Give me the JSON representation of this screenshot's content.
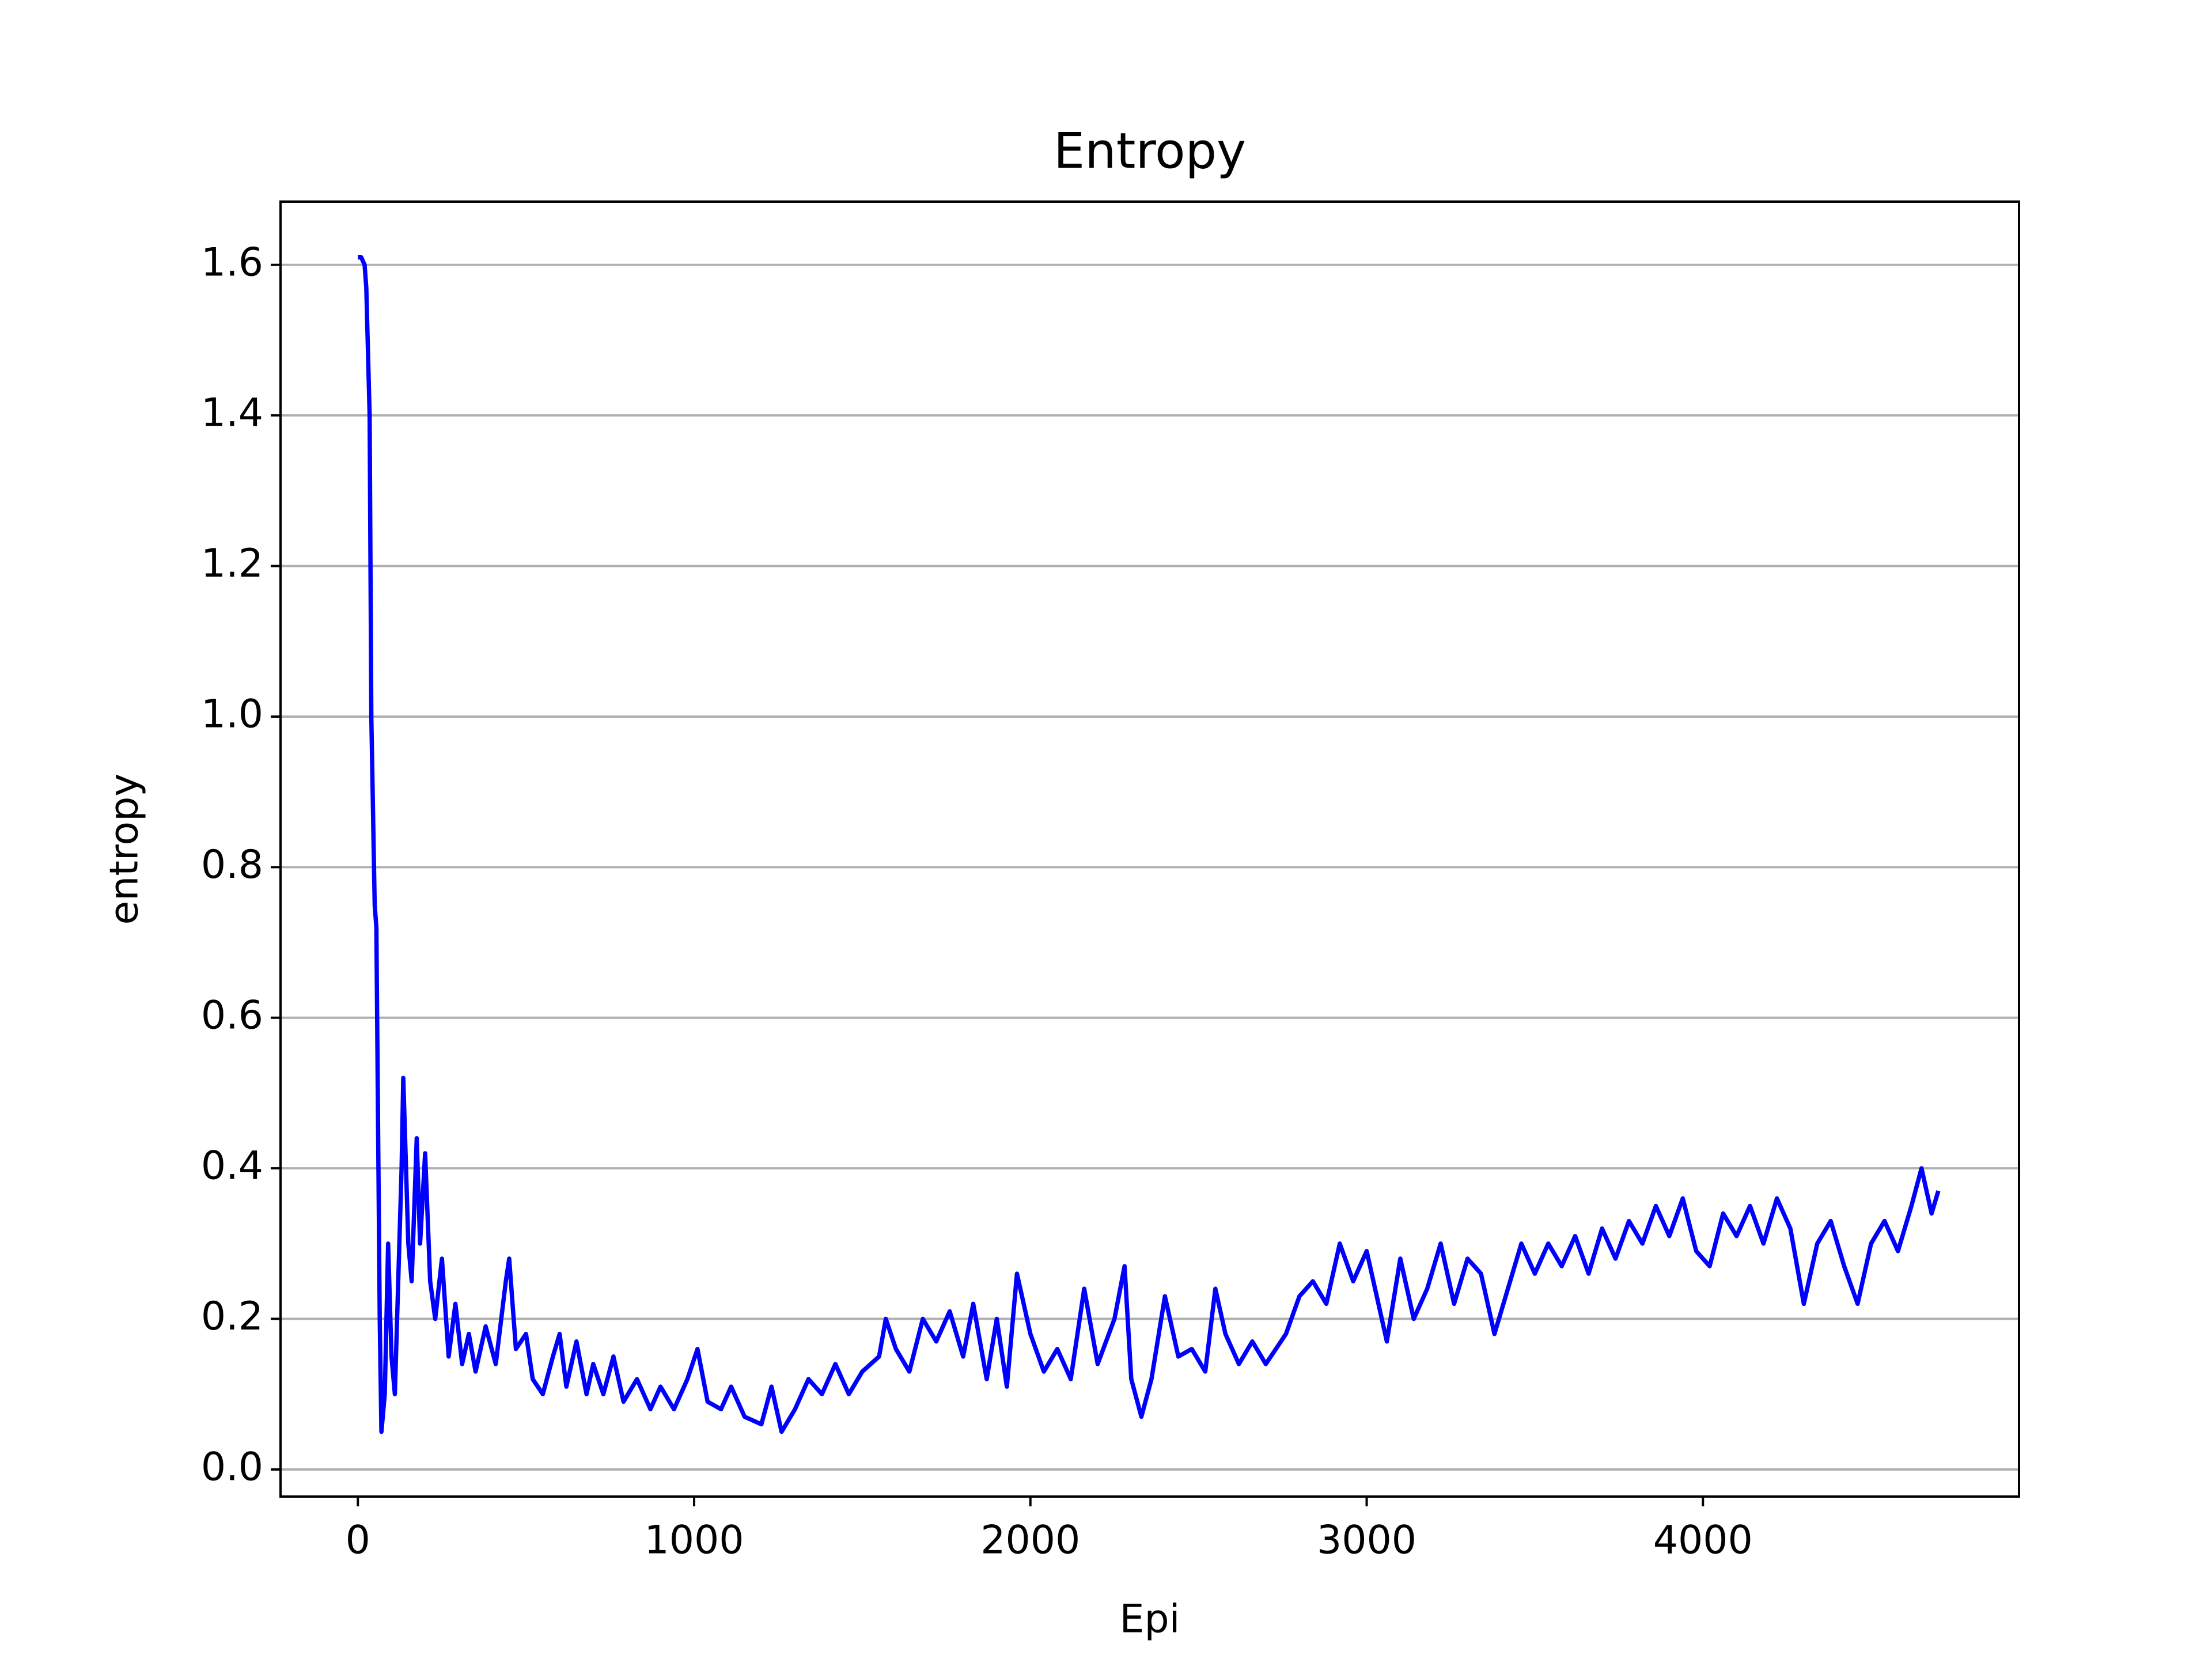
{
  "chart_data": {
    "type": "line",
    "title": "Entropy",
    "x_label": "Epi",
    "y_label": "entropy",
    "xlim": [
      -230,
      4940
    ],
    "ylim": [
      -0.036,
      1.684
    ],
    "xticks": [
      0,
      1000,
      2000,
      3000,
      4000
    ],
    "yticks": [
      {
        "value": 0,
        "label": "0.0"
      },
      0.2,
      0.4,
      0.6,
      0.8,
      {
        "value": 1,
        "label": "1.0"
      },
      1.2,
      1.4,
      1.6
    ],
    "grid": "y",
    "x": [
      0,
      10,
      20,
      25,
      35,
      40,
      50,
      55,
      65,
      70,
      80,
      90,
      100,
      110,
      120,
      130,
      135,
      150,
      160,
      175,
      185,
      200,
      215,
      230,
      250,
      270,
      290,
      310,
      330,
      350,
      380,
      410,
      440,
      450,
      470,
      500,
      520,
      550,
      580,
      600,
      620,
      650,
      680,
      700,
      730,
      760,
      790,
      830,
      870,
      900,
      940,
      980,
      1010,
      1040,
      1080,
      1110,
      1150,
      1200,
      1230,
      1260,
      1300,
      1340,
      1380,
      1420,
      1460,
      1500,
      1550,
      1570,
      1600,
      1640,
      1680,
      1720,
      1760,
      1800,
      1830,
      1870,
      1900,
      1930,
      1960,
      2000,
      2040,
      2080,
      2120,
      2160,
      2200,
      2250,
      2280,
      2300,
      2330,
      2360,
      2400,
      2440,
      2480,
      2520,
      2550,
      2580,
      2620,
      2660,
      2700,
      2760,
      2800,
      2840,
      2880,
      2920,
      2960,
      3000,
      3040,
      3060,
      3100,
      3140,
      3180,
      3220,
      3260,
      3300,
      3340,
      3380,
      3420,
      3460,
      3500,
      3540,
      3580,
      3620,
      3660,
      3700,
      3740,
      3780,
      3820,
      3860,
      3900,
      3940,
      3980,
      4020,
      4060,
      4100,
      4140,
      4180,
      4220,
      4260,
      4300,
      4340,
      4380,
      4420,
      4460,
      4500,
      4540,
      4580,
      4620,
      4650,
      4680,
      4700
    ],
    "series": [
      {
        "name": "entropy",
        "color": "#0000ff",
        "values": [
          1.61,
          1.61,
          1.6,
          1.57,
          1.4,
          1.0,
          0.75,
          0.72,
          0.2,
          0.05,
          0.1,
          0.3,
          0.15,
          0.1,
          0.25,
          0.4,
          0.52,
          0.3,
          0.25,
          0.44,
          0.3,
          0.42,
          0.25,
          0.2,
          0.28,
          0.15,
          0.22,
          0.14,
          0.18,
          0.13,
          0.19,
          0.14,
          0.25,
          0.28,
          0.16,
          0.18,
          0.12,
          0.1,
          0.15,
          0.18,
          0.11,
          0.17,
          0.1,
          0.14,
          0.1,
          0.15,
          0.09,
          0.12,
          0.08,
          0.11,
          0.08,
          0.12,
          0.16,
          0.09,
          0.08,
          0.11,
          0.07,
          0.06,
          0.11,
          0.05,
          0.08,
          0.12,
          0.1,
          0.14,
          0.1,
          0.13,
          0.15,
          0.2,
          0.16,
          0.13,
          0.2,
          0.17,
          0.21,
          0.15,
          0.22,
          0.12,
          0.2,
          0.11,
          0.26,
          0.18,
          0.13,
          0.16,
          0.12,
          0.24,
          0.14,
          0.2,
          0.27,
          0.12,
          0.07,
          0.12,
          0.23,
          0.15,
          0.16,
          0.13,
          0.24,
          0.18,
          0.14,
          0.17,
          0.14,
          0.18,
          0.23,
          0.25,
          0.22,
          0.3,
          0.25,
          0.29,
          0.21,
          0.17,
          0.28,
          0.2,
          0.24,
          0.3,
          0.22,
          0.28,
          0.26,
          0.18,
          0.24,
          0.3,
          0.26,
          0.3,
          0.27,
          0.31,
          0.26,
          0.32,
          0.28,
          0.33,
          0.3,
          0.35,
          0.31,
          0.36,
          0.29,
          0.27,
          0.34,
          0.31,
          0.35,
          0.3,
          0.36,
          0.32,
          0.22,
          0.3,
          0.33,
          0.27,
          0.22,
          0.3,
          0.33,
          0.29,
          0.35,
          0.4,
          0.34,
          0.37
        ]
      }
    ]
  }
}
